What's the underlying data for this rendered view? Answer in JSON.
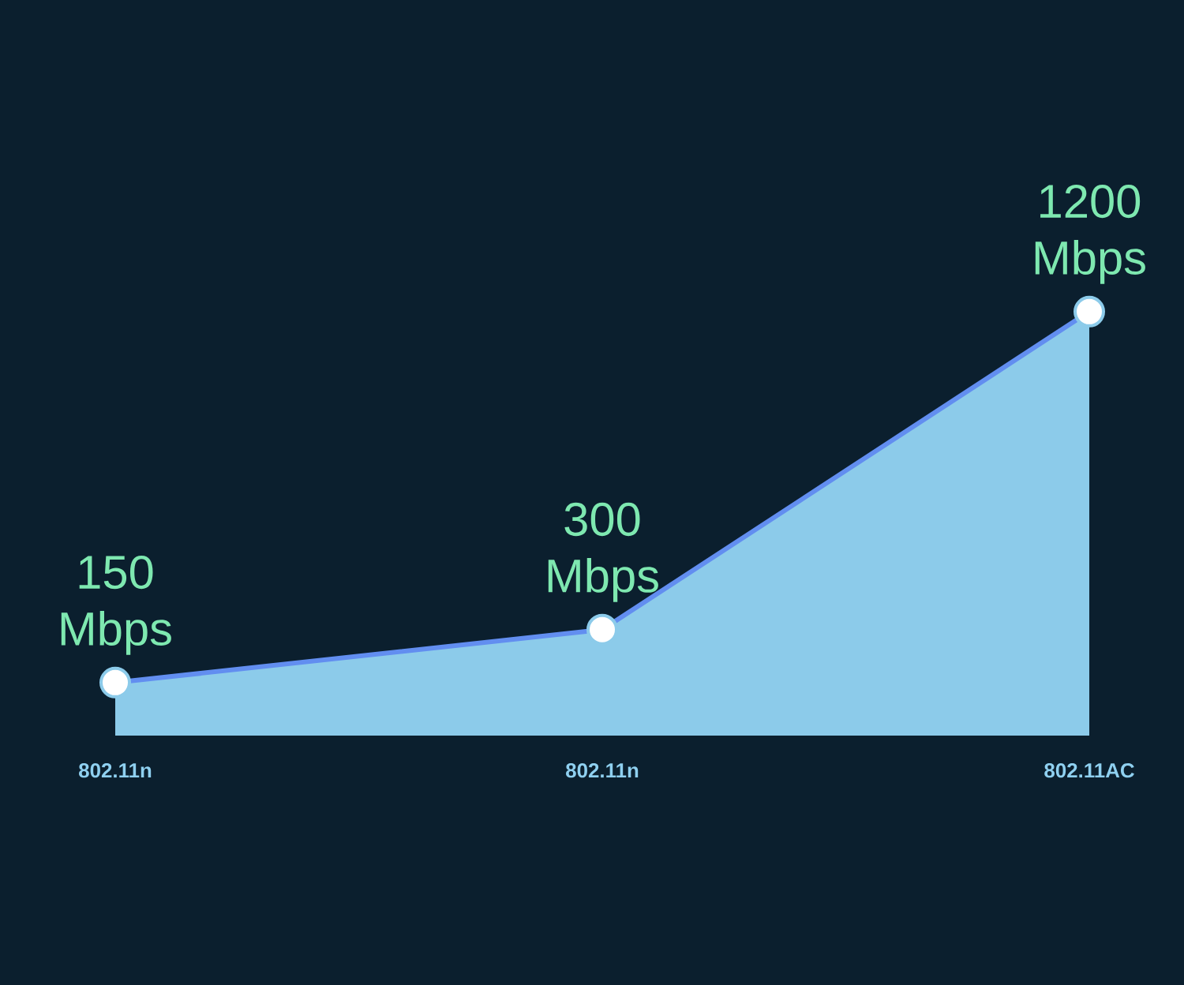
{
  "chart_data": {
    "type": "area",
    "categories": [
      "802.11n",
      "802.11n",
      "802.11AC"
    ],
    "values": [
      150,
      300,
      1200
    ],
    "value_labels": [
      "150 Mbps",
      "300 Mbps",
      "1200 Mbps"
    ],
    "color": "#8ccbea",
    "marker": "circle"
  }
}
